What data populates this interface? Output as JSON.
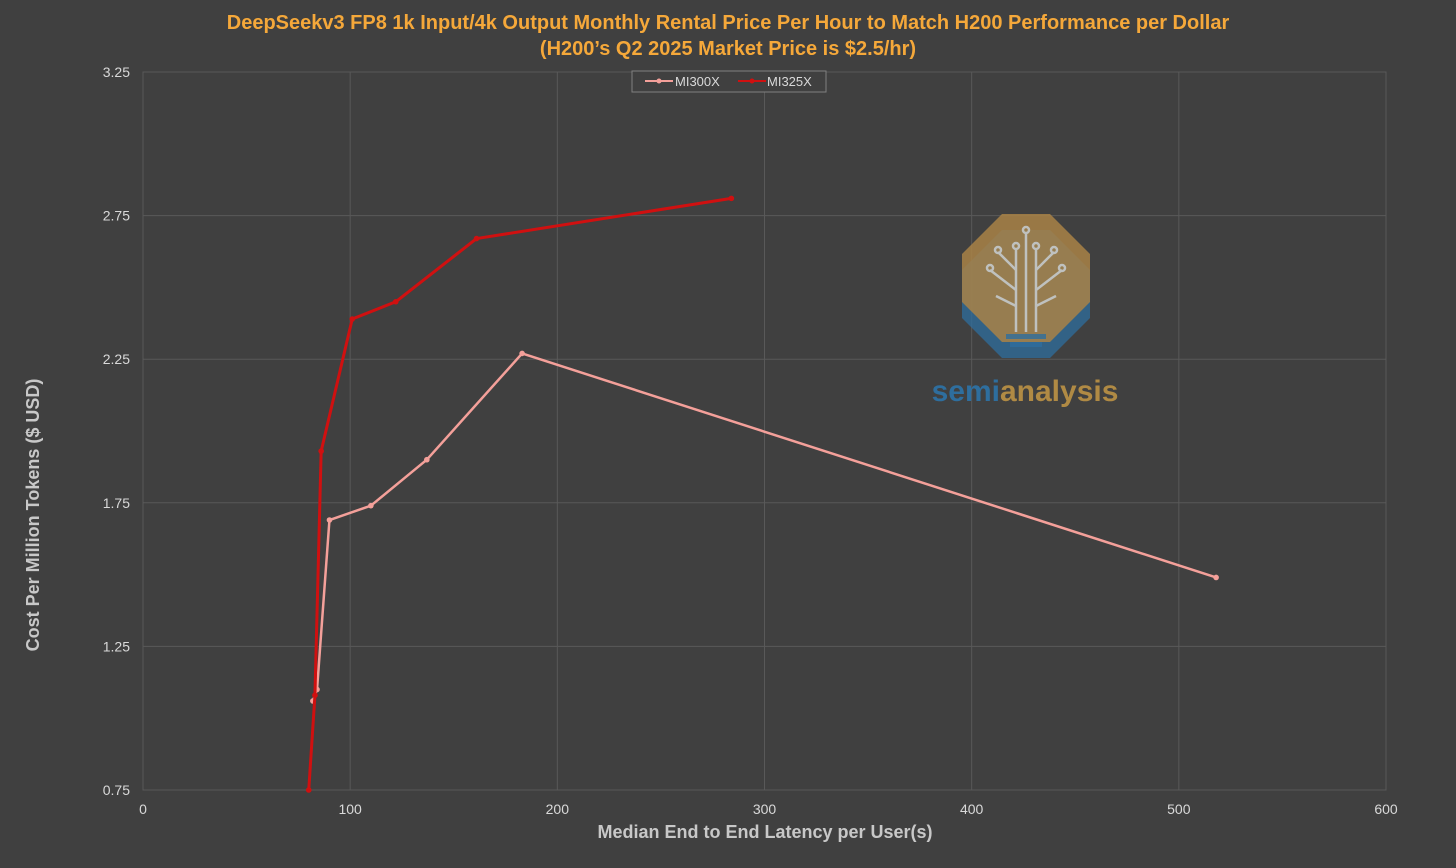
{
  "chart_data": {
    "type": "line",
    "title": "DeepSeekv3 FP8 1k Input/4k Output Monthly Rental Price Per Hour to Match H200 Performance per Dollar",
    "subtitle": "(H200’s Q2 2025 Market Price is $2.5/hr)",
    "xlabel": "Median End to End Latency per User(s)",
    "ylabel": "Cost Per Million Tokens ($ USD)",
    "xlim": [
      0,
      600
    ],
    "ylim": [
      0.75,
      3.25
    ],
    "x_ticks": [
      0,
      100,
      200,
      300,
      400,
      500,
      600
    ],
    "y_ticks": [
      0.75,
      1.25,
      1.75,
      2.25,
      2.75,
      3.25
    ],
    "x_tick_labels": [
      "0",
      "100",
      "200",
      "300",
      "400",
      "500",
      "600"
    ],
    "y_tick_labels": [
      "0.75",
      "1.25",
      "1.75",
      "2.25",
      "2.75",
      "3.25"
    ],
    "grid": true,
    "legend_position": "top-center",
    "series": [
      {
        "name": "MI300X",
        "color": "#f4a09a",
        "x": [
          82,
          84,
          90,
          110,
          137,
          183,
          518
        ],
        "y": [
          1.06,
          1.1,
          1.69,
          1.74,
          1.9,
          2.27,
          1.49
        ]
      },
      {
        "name": "MI325X",
        "color": "#d01010",
        "x": [
          80,
          83,
          86,
          101,
          122,
          161,
          284
        ],
        "y": [
          0.75,
          1.08,
          1.93,
          2.39,
          2.45,
          2.67,
          2.81
        ]
      }
    ]
  },
  "watermark": {
    "text_part1": "semi",
    "text_part2": "analysis",
    "color_part1": "#2e6e9e",
    "color_part2": "#b08a44"
  }
}
